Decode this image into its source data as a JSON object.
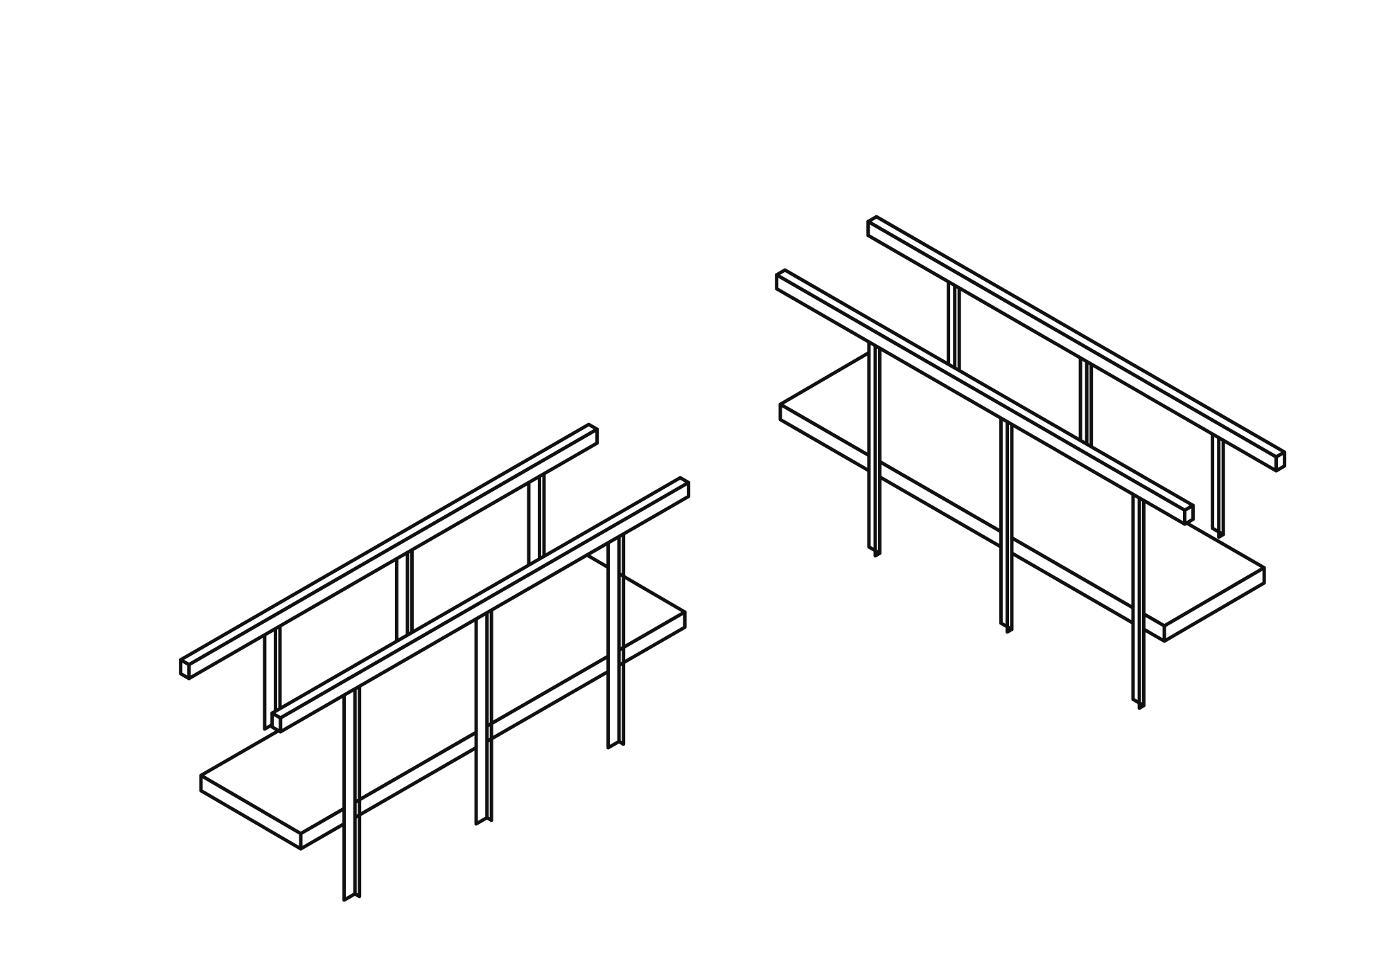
{
  "figure": {
    "background": "#ffffff",
    "ink_color": "#111111",
    "views": [
      {
        "subject": "walkway-with-handrails",
        "view": "isometric-left"
      },
      {
        "subject": "walkway-with-handrails",
        "view": "isometric-right-mirrored"
      }
    ]
  }
}
